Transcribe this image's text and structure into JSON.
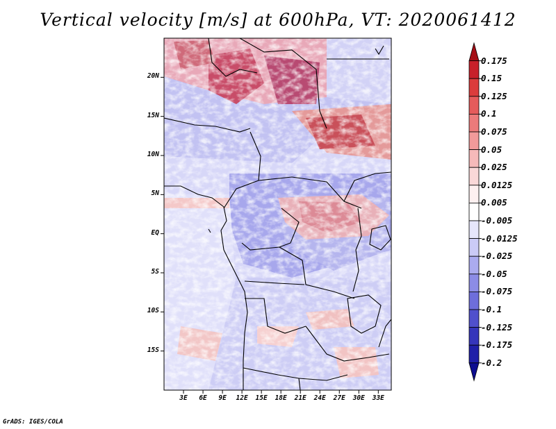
{
  "title": "Vertical velocity [m/s] at 600hPa, VT: 2020061412",
  "footer": "GrADS: IGES/COLA",
  "map": {
    "lat_range": [
      -20,
      25
    ],
    "lon_range": [
      0,
      35
    ],
    "y_ticks": [
      "20N",
      "15N",
      "10N",
      "5N",
      "EQ",
      "5S",
      "10S",
      "15S"
    ],
    "y_tick_lats": [
      20,
      15,
      10,
      5,
      0,
      -5,
      -10,
      -15
    ],
    "x_ticks": [
      "3E",
      "6E",
      "9E",
      "12E",
      "15E",
      "18E",
      "21E",
      "24E",
      "27E",
      "30E",
      "33E"
    ],
    "x_tick_lons": [
      3,
      6,
      9,
      12,
      15,
      18,
      21,
      24,
      27,
      30,
      33
    ]
  },
  "colorbar": {
    "labels": [
      "0.175",
      "0.15",
      "0.125",
      "0.1",
      "0.075",
      "0.05",
      "0.025",
      "0.0125",
      "0.005",
      "-0.005",
      "-0.0125",
      "-0.025",
      "-0.05",
      "-0.075",
      "-0.1",
      "-0.125",
      "-0.175",
      "-0.2"
    ],
    "colors": [
      "#a50f15",
      "#c8202a",
      "#db3c3c",
      "#e55b5b",
      "#ec7b7b",
      "#f19a9a",
      "#f6baba",
      "#fad8d8",
      "#fdf0f0",
      "#ffffff",
      "#e6e6fb",
      "#cbcbf6",
      "#ababef",
      "#8c8ce6",
      "#6e6edb",
      "#5050cc",
      "#3535bb",
      "#1f1fa8",
      "#0e0e90"
    ]
  }
}
